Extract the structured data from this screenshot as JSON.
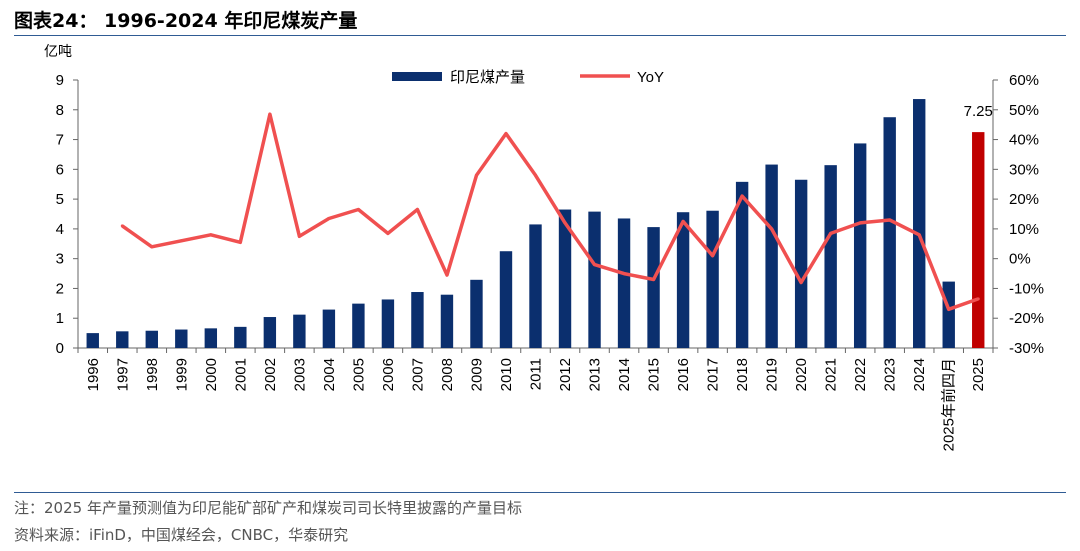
{
  "header": {
    "title": "图表24：  1996-2024 年印尼煤炭产量"
  },
  "footer": {
    "note": "注：2025 年产量预测值为印尼能矿部矿产和煤炭司司长特里披露的产量目标",
    "source": "资料来源：iFinD，中国煤经会，CNBC，华泰研究"
  },
  "chart_data": {
    "type": "bar",
    "categories": [
      "1996",
      "1997",
      "1998",
      "1999",
      "2000",
      "2001",
      "2002",
      "2003",
      "2004",
      "2005",
      "2006",
      "2007",
      "2008",
      "2009",
      "2010",
      "2011",
      "2012",
      "2013",
      "2014",
      "2015",
      "2016",
      "2017",
      "2018",
      "2019",
      "2020",
      "2021",
      "2022",
      "2023",
      "2024",
      "2025年前四月",
      "2025"
    ],
    "ylabel": "亿吨",
    "ylim": [
      0,
      9
    ],
    "yticks": [
      "0",
      "1",
      "2",
      "3",
      "4",
      "5",
      "6",
      "7",
      "8",
      "9"
    ],
    "y2lim": [
      -30,
      60
    ],
    "y2ticks": [
      "-30%",
      "-20%",
      "-10%",
      "0%",
      "10%",
      "20%",
      "30%",
      "40%",
      "50%",
      "60%"
    ],
    "grid": false,
    "legend_position": "top-center",
    "series": [
      {
        "name": "印尼煤产量",
        "type": "bar",
        "color": "#0b2f6e",
        "values": [
          0.5,
          0.56,
          0.58,
          0.62,
          0.66,
          0.71,
          1.04,
          1.12,
          1.29,
          1.49,
          1.63,
          1.88,
          1.79,
          2.29,
          3.25,
          4.15,
          4.65,
          4.58,
          4.35,
          4.06,
          4.56,
          4.61,
          5.58,
          6.16,
          5.65,
          6.14,
          6.87,
          7.75,
          8.36,
          2.23,
          null
        ]
      },
      {
        "name": "",
        "type": "bar",
        "color": "#c00000",
        "values": [
          null,
          null,
          null,
          null,
          null,
          null,
          null,
          null,
          null,
          null,
          null,
          null,
          null,
          null,
          null,
          null,
          null,
          null,
          null,
          null,
          null,
          null,
          null,
          null,
          null,
          null,
          null,
          null,
          null,
          null,
          7.25
        ]
      },
      {
        "name": "YoY",
        "type": "line",
        "axis": "right",
        "unit": "%",
        "color": "#f05050",
        "values": [
          null,
          11,
          4,
          6,
          8,
          5.5,
          48.5,
          7.5,
          13.5,
          16.5,
          8.5,
          16.5,
          -5.5,
          28,
          42,
          28,
          12,
          -2,
          -5,
          -7,
          12.5,
          1,
          21,
          10,
          -8,
          8.5,
          12,
          13,
          8,
          -17,
          -13.5
        ]
      }
    ],
    "annotations": [
      {
        "category": "2025",
        "text": "7.25"
      }
    ]
  }
}
